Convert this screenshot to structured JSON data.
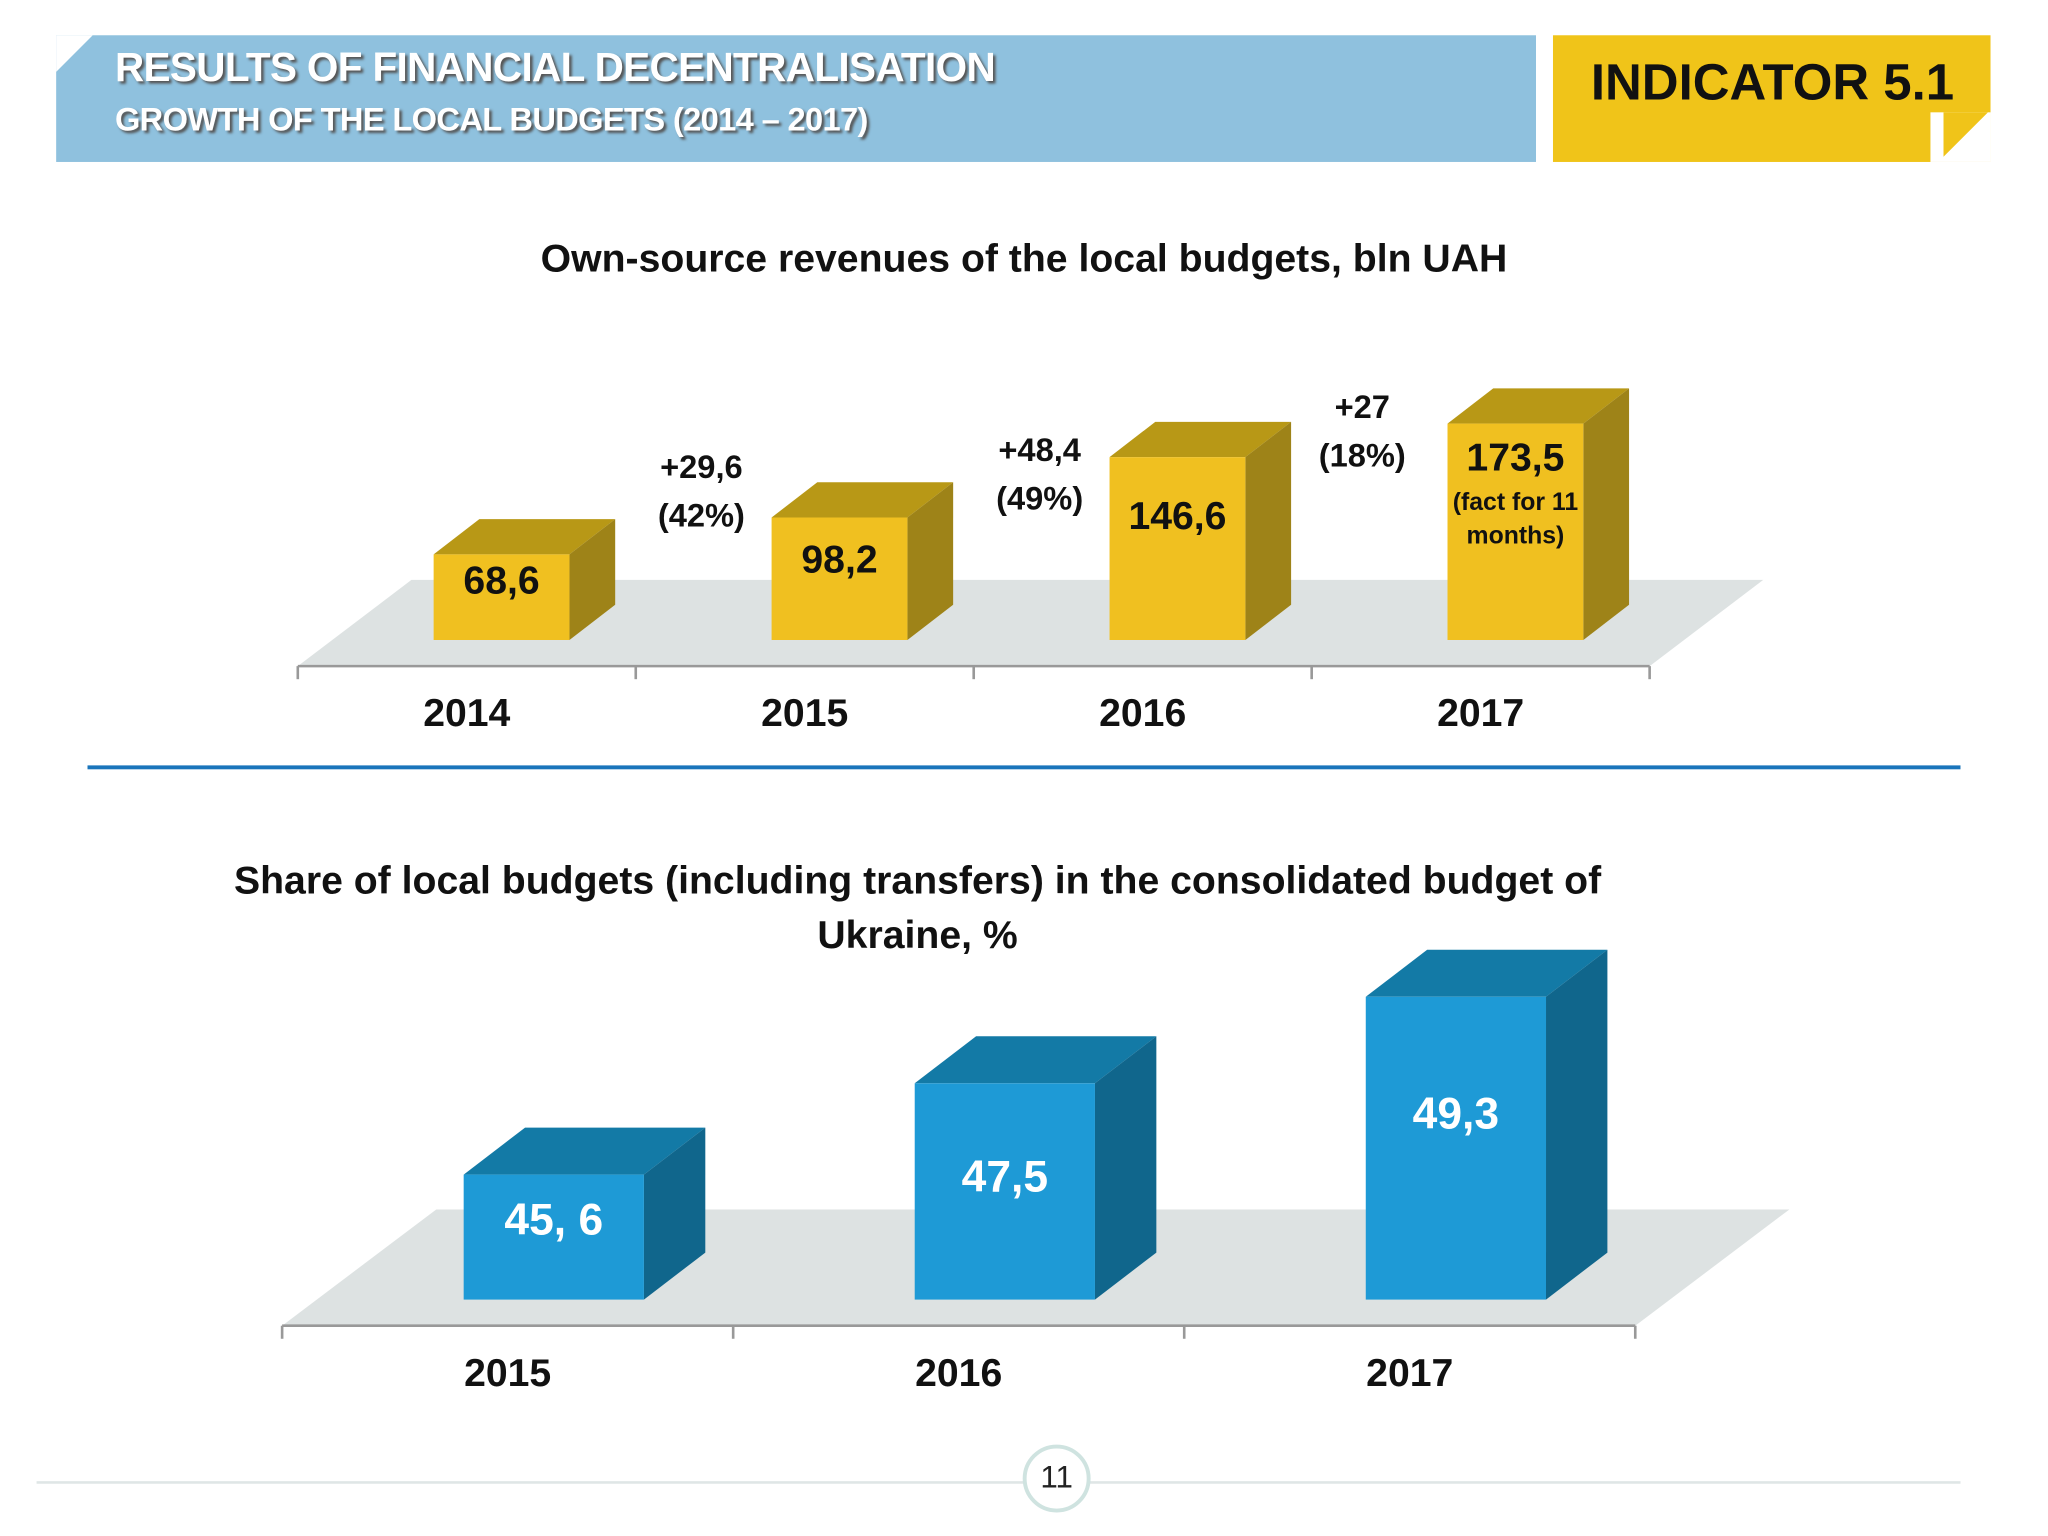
{
  "header": {
    "title": "RESULTS OF FINANCIAL DECENTRALISATION",
    "subtitle": "GROWTH OF THE LOCAL BUDGETS (2014 – 2017)",
    "indicator": "INDICATOR 5.1",
    "colors": {
      "banner": "#8fc1de",
      "indicator": "#f0c419",
      "separator": "#1a75bb"
    }
  },
  "page_number": "11",
  "chart_data": [
    {
      "type": "bar",
      "style": "3d",
      "title": "Own-source revenues of the local budgets, bln UAH",
      "categories": [
        "2014",
        "2015",
        "2016",
        "2017"
      ],
      "values": [
        68.6,
        98.2,
        146.6,
        173.5
      ],
      "data_labels": [
        "68,6",
        "98,2",
        "146,6",
        "173,5"
      ],
      "data_label_notes": [
        "",
        "",
        "",
        "(fact for 11 months)"
      ],
      "annotations": [
        {
          "between": [
            "2014",
            "2015"
          ],
          "lines": [
            "+29,6",
            "(42%)"
          ]
        },
        {
          "between": [
            "2015",
            "2016"
          ],
          "lines": [
            "+48,4",
            "(49%)"
          ]
        },
        {
          "between": [
            "2016",
            "2017"
          ],
          "lines": [
            "+27",
            "(18%)"
          ]
        }
      ],
      "ylim": [
        0,
        180
      ],
      "grid": false,
      "legend": "none",
      "color": "#f0c020"
    },
    {
      "type": "bar",
      "style": "3d",
      "title": "Share of local budgets (including transfers) in the consolidated budget of Ukraine, %",
      "categories": [
        "2015",
        "2016",
        "2017"
      ],
      "values": [
        45.6,
        47.5,
        49.3
      ],
      "data_labels": [
        "45, 6",
        "47,5",
        "49,3"
      ],
      "ylim": [
        43,
        50
      ],
      "grid": false,
      "legend": "none",
      "color": "#1e9ad6"
    }
  ]
}
